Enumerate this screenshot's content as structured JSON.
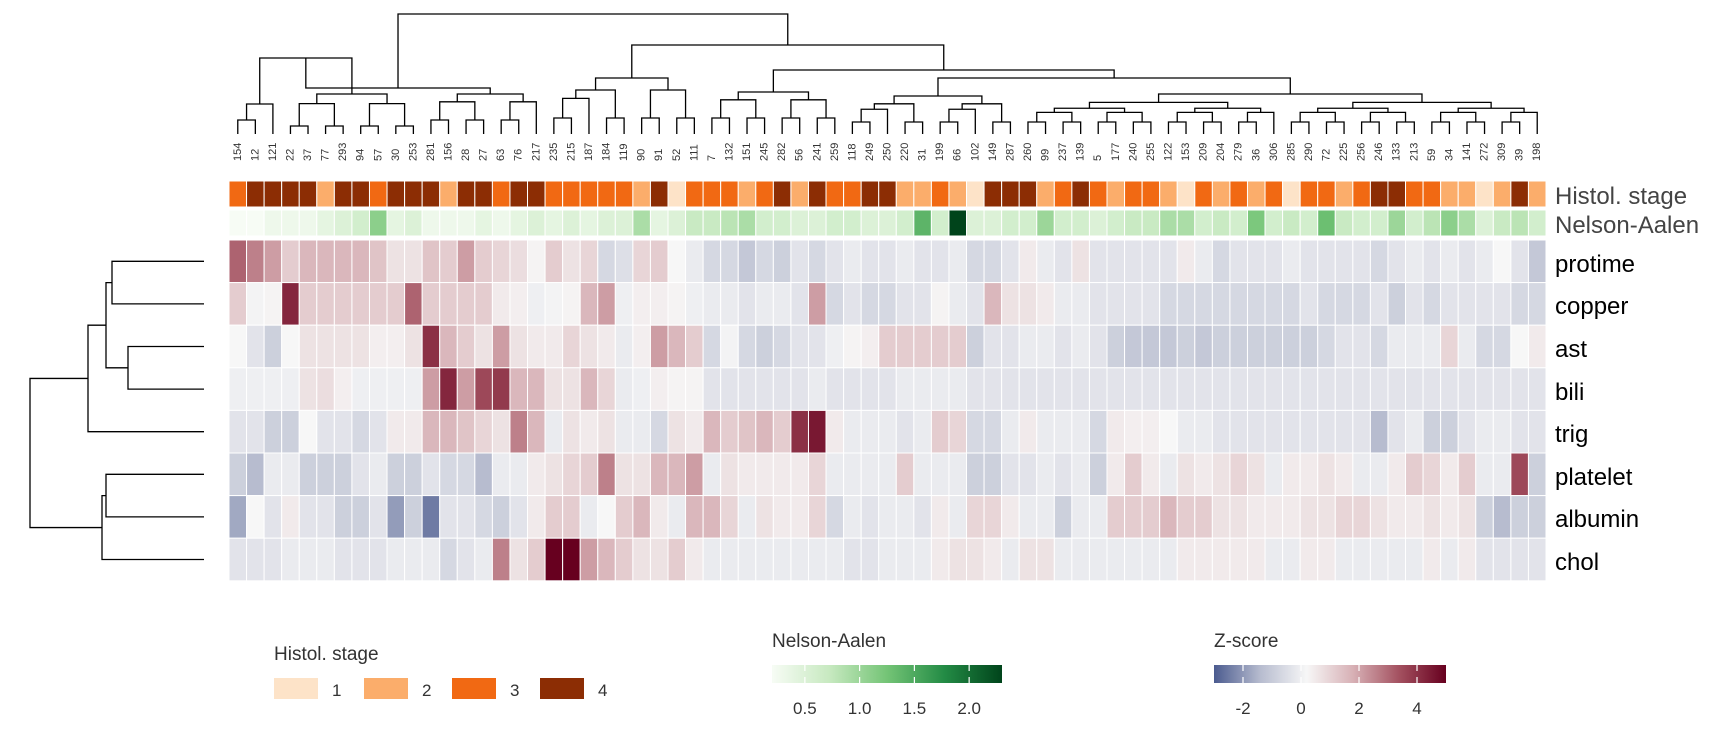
{
  "chart_data": {
    "type": "heatmap",
    "columns": [
      "154",
      "12",
      "121",
      "22",
      "37",
      "77",
      "293",
      "94",
      "57",
      "30",
      "253",
      "281",
      "156",
      "28",
      "27",
      "63",
      "76",
      "217",
      "235",
      "215",
      "187",
      "184",
      "119",
      "90",
      "91",
      "52",
      "111",
      "7",
      "132",
      "151",
      "245",
      "282",
      "56",
      "241",
      "259",
      "118",
      "249",
      "250",
      "220",
      "31",
      "199",
      "66",
      "102",
      "149",
      "287",
      "260",
      "99",
      "237",
      "139",
      "5",
      "177",
      "240",
      "255",
      "122",
      "153",
      "209",
      "204",
      "279",
      "36",
      "306",
      "285",
      "290",
      "72",
      "225",
      "256",
      "246",
      "133",
      "213",
      "59",
      "34",
      "141",
      "272",
      "309",
      "39",
      "198"
    ],
    "rows": [
      "protime",
      "copper",
      "ast",
      "bili",
      "trig",
      "platelet",
      "albumin",
      "chol"
    ],
    "annotations": {
      "histol_stage": {
        "label": "Histol. stage",
        "values": [
          3,
          4,
          4,
          4,
          4,
          2,
          4,
          4,
          3,
          4,
          4,
          4,
          2,
          4,
          4,
          3,
          4,
          4,
          3,
          3,
          3,
          3,
          3,
          2,
          4,
          1,
          3,
          3,
          3,
          2,
          3,
          4,
          2,
          4,
          3,
          3,
          4,
          4,
          2,
          2,
          3,
          2,
          1,
          4,
          4,
          4,
          2,
          3,
          4,
          3,
          2,
          3,
          3,
          2,
          1,
          3,
          2,
          3,
          2,
          3,
          1,
          3,
          3,
          2,
          3,
          4,
          4,
          3,
          3,
          2,
          2,
          1,
          2,
          4,
          2
        ]
      },
      "nelson_aalen": {
        "label": "Nelson-Aalen",
        "values": [
          0.2,
          0.2,
          0.3,
          0.3,
          0.3,
          0.4,
          0.5,
          0.6,
          1.1,
          0.4,
          0.5,
          0.3,
          0.3,
          0.3,
          0.4,
          0.3,
          0.4,
          0.5,
          0.4,
          0.5,
          0.4,
          0.5,
          0.5,
          0.9,
          0.4,
          0.5,
          0.7,
          0.7,
          0.8,
          0.9,
          0.6,
          0.6,
          0.5,
          0.5,
          0.6,
          0.6,
          0.5,
          0.5,
          0.6,
          1.4,
          0.6,
          2.3,
          0.5,
          0.5,
          0.6,
          0.6,
          1.0,
          0.6,
          0.6,
          0.5,
          0.6,
          0.7,
          0.7,
          0.9,
          0.9,
          0.6,
          0.7,
          0.6,
          1.2,
          0.6,
          0.7,
          0.6,
          1.3,
          0.7,
          0.6,
          0.6,
          1.0,
          0.6,
          0.8,
          1.1,
          0.9,
          0.5,
          0.7,
          0.8,
          0.6
        ]
      }
    },
    "values": {
      "protime": [
        3.0,
        2.5,
        2.0,
        1.0,
        1.5,
        1.5,
        1.5,
        1.5,
        1.2,
        0.5,
        0.5,
        1.2,
        1.0,
        2.0,
        1.0,
        0.8,
        0.6,
        0.1,
        1.0,
        0.5,
        0.8,
        -0.8,
        -0.6,
        0.8,
        1.0,
        0.0,
        -0.3,
        -0.8,
        -0.8,
        -1.2,
        -0.8,
        -1.0,
        -0.5,
        -0.8,
        -0.5,
        -0.3,
        -0.5,
        -0.5,
        -0.3,
        -0.5,
        -0.5,
        -0.3,
        -0.8,
        -0.8,
        -0.5,
        0.3,
        -0.3,
        -0.5,
        0.5,
        -0.5,
        -0.5,
        -0.5,
        -0.5,
        -0.5,
        0.3,
        -0.3,
        -0.8,
        -0.5,
        -0.5,
        -0.5,
        -0.3,
        -0.5,
        -0.5,
        -0.5,
        -0.5,
        -0.8,
        -0.5,
        -0.3,
        -0.5,
        -0.3,
        -0.5,
        -0.3,
        0.0,
        -0.5,
        -1.2
      ],
      "copper": [
        1.0,
        -0.1,
        0.1,
        4.2,
        1.0,
        1.0,
        1.0,
        1.0,
        1.0,
        1.0,
        3.0,
        1.0,
        1.0,
        1.0,
        1.0,
        0.3,
        0.2,
        -0.2,
        -0.1,
        0.1,
        1.5,
        2.0,
        -0.2,
        0.2,
        0.2,
        0.1,
        -0.2,
        -0.3,
        -0.3,
        -0.5,
        -0.3,
        -0.3,
        -0.5,
        2.0,
        -0.8,
        -0.5,
        -0.8,
        -0.8,
        -0.5,
        -0.5,
        0.1,
        -0.3,
        -0.5,
        1.5,
        0.5,
        0.5,
        0.3,
        -0.3,
        -0.3,
        -0.5,
        -0.5,
        -0.5,
        -0.5,
        -0.8,
        -0.8,
        -0.8,
        -0.8,
        -0.8,
        -0.8,
        -0.8,
        -0.8,
        -0.5,
        -0.8,
        -0.8,
        -0.8,
        -0.5,
        -1.0,
        -0.5,
        -0.8,
        -0.5,
        -0.5,
        -0.5,
        -0.5,
        -0.8,
        -0.8
      ],
      "ast": [
        0.0,
        -0.5,
        -1.0,
        0.0,
        0.5,
        0.5,
        0.5,
        0.5,
        0.2,
        0.2,
        0.5,
        4.0,
        1.5,
        1.0,
        0.5,
        2.0,
        0.5,
        0.3,
        0.3,
        0.8,
        0.5,
        0.3,
        -0.3,
        0.2,
        2.0,
        1.5,
        1.0,
        -0.8,
        -0.1,
        -0.8,
        -1.0,
        -0.8,
        -0.5,
        -0.5,
        -0.2,
        0.1,
        0.2,
        1.0,
        1.0,
        1.0,
        1.0,
        1.0,
        -1.0,
        -0.5,
        -0.5,
        -0.3,
        -0.3,
        -0.5,
        -0.3,
        -0.5,
        -1.0,
        -1.2,
        -1.2,
        -1.2,
        -1.0,
        -1.2,
        -1.0,
        -1.0,
        -1.0,
        -1.0,
        -1.0,
        -1.0,
        -0.8,
        -0.5,
        -0.5,
        -0.8,
        -0.3,
        -0.3,
        -0.3,
        0.8,
        -0.3,
        -0.8,
        -0.8,
        0.0,
        0.3
      ],
      "bili": [
        -0.2,
        -0.2,
        -0.2,
        -0.2,
        0.5,
        0.6,
        0.2,
        -0.2,
        -0.2,
        -0.2,
        -0.2,
        2.0,
        4.2,
        2.0,
        3.5,
        3.8,
        1.5,
        1.5,
        0.5,
        0.5,
        1.5,
        0.8,
        -0.3,
        -0.2,
        0.2,
        0.1,
        0.1,
        -0.5,
        -0.5,
        -0.5,
        -0.5,
        -0.5,
        -0.5,
        -0.3,
        -0.5,
        -0.5,
        -0.5,
        -0.5,
        -0.3,
        -0.3,
        -0.3,
        -0.3,
        -0.5,
        -0.5,
        -0.5,
        -0.5,
        -0.5,
        -0.5,
        -0.5,
        -0.5,
        -0.5,
        -0.5,
        -0.5,
        -0.5,
        -0.5,
        -0.5,
        -0.5,
        -0.5,
        -0.5,
        -0.5,
        -0.5,
        -0.5,
        -0.5,
        -0.5,
        -0.5,
        -0.5,
        -0.5,
        -0.5,
        -0.5,
        -0.5,
        -0.5,
        -0.5,
        -0.5,
        -0.5,
        -0.5
      ],
      "trig": [
        -0.5,
        -0.5,
        -1.0,
        -1.0,
        0.0,
        -0.5,
        -0.5,
        -0.8,
        -0.5,
        0.3,
        0.3,
        1.5,
        1.5,
        1.2,
        0.8,
        0.5,
        2.5,
        1.5,
        -0.3,
        0.5,
        0.3,
        0.5,
        -0.3,
        -0.3,
        -0.8,
        0.5,
        0.3,
        1.5,
        1.0,
        1.2,
        1.5,
        1.0,
        4.0,
        4.5,
        0.3,
        -0.3,
        -0.3,
        -0.3,
        -0.5,
        -0.3,
        1.0,
        0.8,
        -0.8,
        -0.8,
        -0.3,
        0.3,
        -0.3,
        -0.3,
        -0.3,
        -0.8,
        0.3,
        0.2,
        0.2,
        0.0,
        -0.3,
        -0.3,
        -0.5,
        -0.5,
        -0.5,
        -0.5,
        -0.5,
        -0.5,
        -0.5,
        -0.5,
        -0.5,
        -1.5,
        -0.5,
        -0.3,
        -1.0,
        -1.0,
        -0.5,
        -0.3,
        -0.3,
        -0.5,
        -0.5
      ],
      "platelet": [
        -1.0,
        -1.5,
        -0.3,
        -0.3,
        -1.0,
        -1.0,
        -1.0,
        -0.5,
        -0.3,
        -1.0,
        -1.0,
        -0.5,
        -0.8,
        -0.8,
        -1.5,
        -0.3,
        -0.3,
        0.3,
        0.5,
        0.8,
        1.0,
        2.5,
        0.5,
        0.5,
        1.5,
        1.5,
        2.0,
        -0.3,
        0.5,
        0.3,
        0.3,
        0.3,
        0.3,
        0.8,
        -0.3,
        -0.3,
        -0.3,
        -0.3,
        1.0,
        -0.3,
        -0.3,
        -0.3,
        -1.0,
        -1.0,
        -0.5,
        -0.5,
        -0.3,
        -0.5,
        -0.3,
        -1.0,
        0.3,
        1.0,
        0.3,
        -0.3,
        0.5,
        0.3,
        0.5,
        0.8,
        0.5,
        -0.3,
        0.3,
        0.3,
        0.5,
        0.3,
        -0.3,
        -0.3,
        0.3,
        1.0,
        0.8,
        0.3,
        1.0,
        -0.3,
        -0.3,
        3.5,
        -1.0
      ],
      "albumin": [
        -1.8,
        0.0,
        -0.5,
        0.3,
        -0.5,
        -0.5,
        -1.0,
        -1.0,
        -0.5,
        -2.0,
        -1.0,
        -2.5,
        -0.5,
        -0.5,
        -0.8,
        -1.0,
        -0.5,
        0.3,
        1.0,
        1.0,
        -0.3,
        0.0,
        1.0,
        1.5,
        0.3,
        -0.3,
        1.5,
        1.5,
        0.8,
        -0.3,
        0.5,
        0.3,
        0.3,
        0.8,
        -0.8,
        -0.3,
        -0.5,
        -0.3,
        -0.3,
        -0.5,
        0.3,
        -0.3,
        0.8,
        0.8,
        0.3,
        -0.3,
        -0.3,
        -1.0,
        -0.3,
        -0.3,
        1.0,
        1.0,
        1.0,
        1.5,
        1.0,
        1.0,
        0.5,
        0.5,
        0.3,
        0.3,
        0.3,
        0.5,
        0.5,
        0.8,
        0.8,
        0.5,
        0.3,
        0.3,
        0.5,
        0.3,
        0.5,
        -1.0,
        -1.5,
        -1.0,
        -1.0
      ],
      "chol": [
        -0.5,
        -0.5,
        -0.5,
        -0.3,
        -0.3,
        -0.3,
        -0.5,
        -0.5,
        -0.5,
        -0.3,
        -0.3,
        -0.3,
        -0.8,
        -0.5,
        -0.3,
        2.5,
        0.5,
        1.0,
        5.0,
        5.0,
        2.0,
        1.5,
        1.0,
        0.5,
        0.5,
        1.0,
        0.3,
        -0.3,
        -0.3,
        -0.3,
        -0.3,
        -0.3,
        -0.3,
        -0.3,
        -0.3,
        -0.5,
        -0.5,
        -0.3,
        -0.3,
        -0.3,
        0.3,
        0.5,
        0.5,
        0.3,
        -0.3,
        0.5,
        0.5,
        -0.3,
        -0.3,
        -0.3,
        -0.3,
        -0.3,
        -0.3,
        -0.3,
        0.3,
        0.3,
        0.3,
        0.3,
        0.3,
        -0.3,
        -0.3,
        0.3,
        0.3,
        -0.3,
        -0.3,
        -0.3,
        -0.3,
        -0.3,
        0.3,
        -0.3,
        0.3,
        -0.5,
        -0.5,
        -0.5,
        -0.5
      ]
    },
    "legends": {
      "histol_stage": {
        "title": "Histol. stage",
        "entries": [
          "1",
          "2",
          "3",
          "4"
        ],
        "colors": [
          "#fde3c8",
          "#fbad6b",
          "#f16913",
          "#8c2d04"
        ]
      },
      "nelson_aalen": {
        "title": "Nelson-Aalen",
        "ticks": [
          "0.5",
          "1.0",
          "1.5",
          "2.0"
        ],
        "range": [
          0.2,
          2.3
        ],
        "colors": [
          "#f7fcf5",
          "#c7e9c0",
          "#74c476",
          "#238b45",
          "#00441b"
        ]
      },
      "zscore": {
        "title": "Z-score",
        "ticks": [
          "-2",
          "0",
          "2",
          "4"
        ],
        "range": [
          -3,
          5
        ],
        "colors": [
          "#4b5b8f",
          "#b7bccf",
          "#f7f7f7",
          "#d7b0b5",
          "#a3505f",
          "#67001f"
        ]
      }
    }
  }
}
